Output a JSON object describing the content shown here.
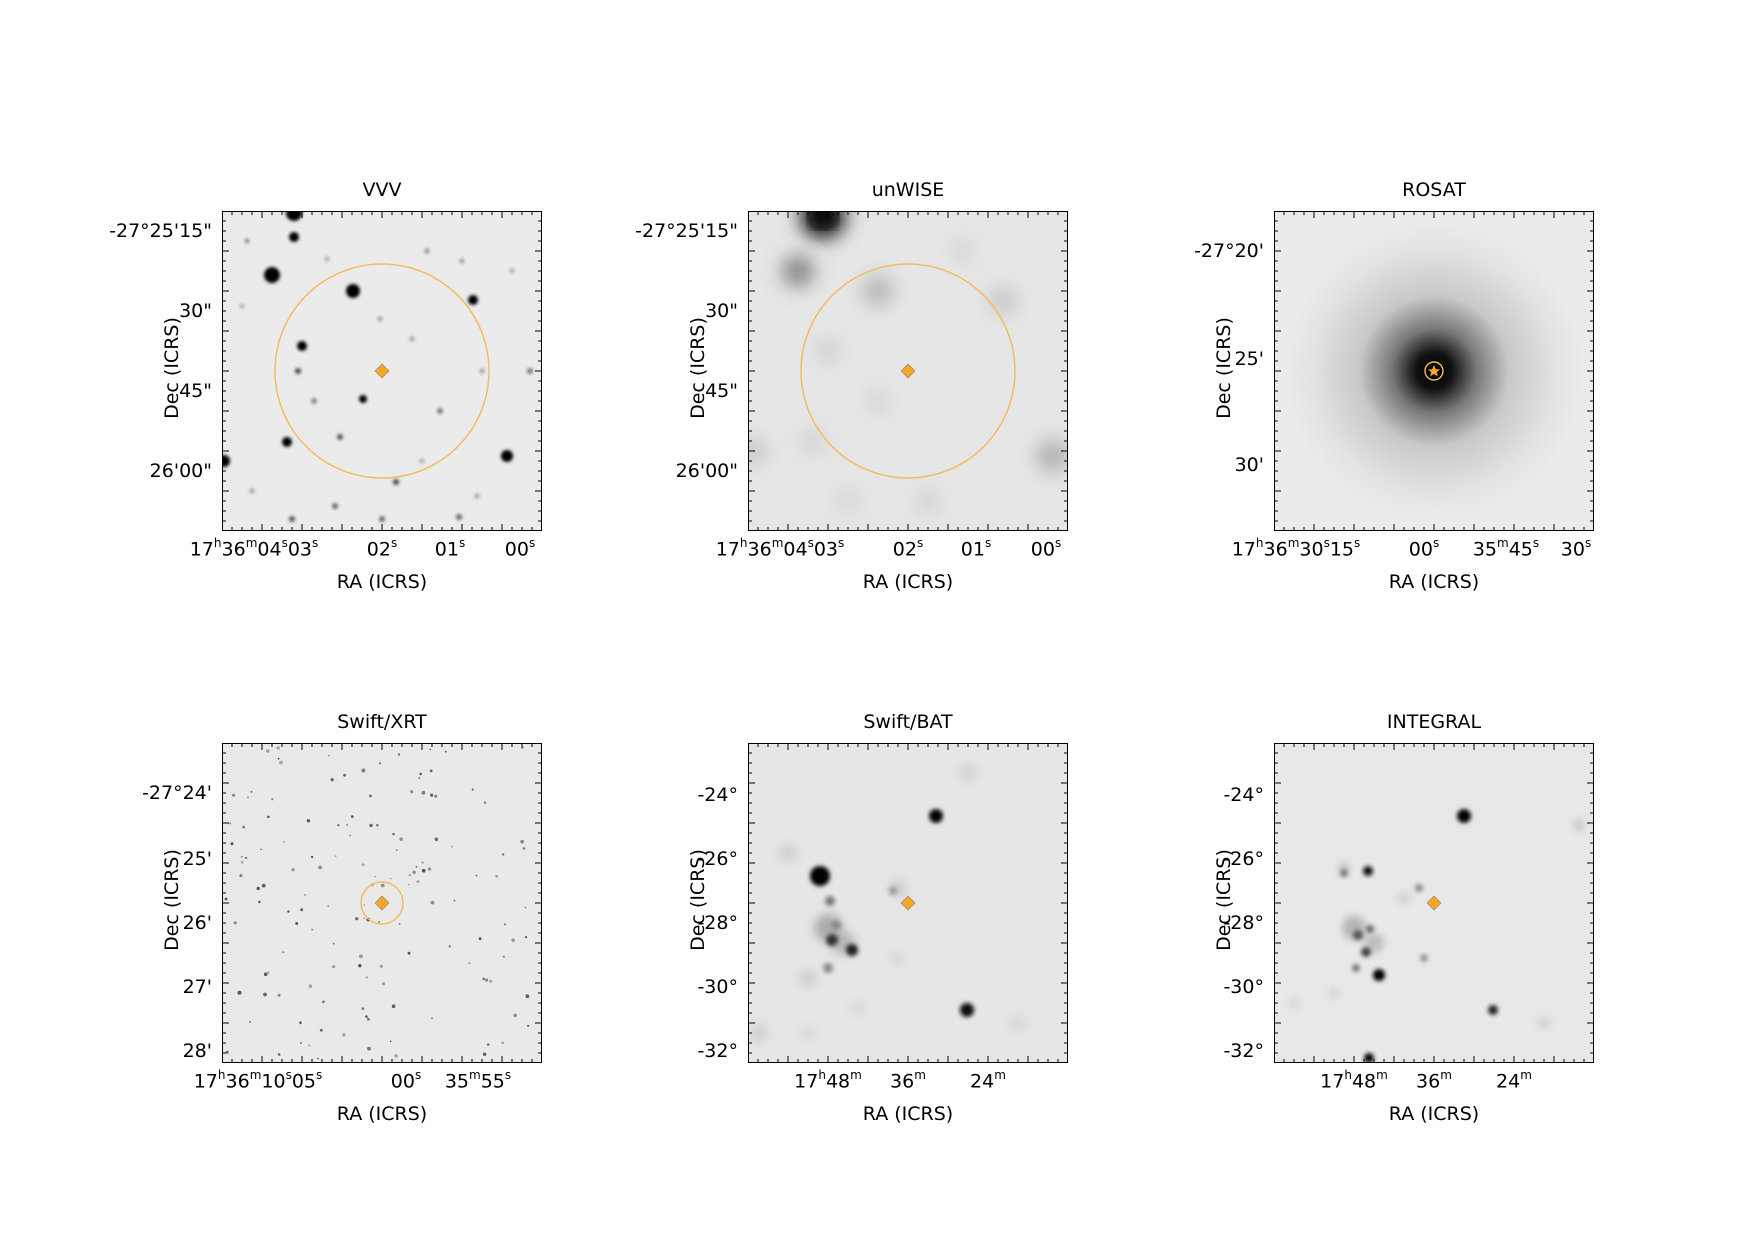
{
  "colors": {
    "marker": "#f5a623",
    "circle": "#f2bd5e",
    "background": "#ebebeb"
  },
  "panels": [
    {
      "id": "vvv",
      "title": "VVV",
      "xlabel": "RA (ICRS)",
      "ylabel": "Dec (ICRS)",
      "yticks": [
        "-27°25'15\"",
        "30\"",
        "45\"",
        "26'00\""
      ],
      "xticks": [
        {
          "segs": [
            [
              "17",
              "h"
            ],
            [
              "36",
              "m"
            ],
            [
              "04",
              "s"
            ],
            [
              "03",
              "s"
            ]
          ]
        },
        {
          "segs": [
            [
              "02",
              "s"
            ]
          ]
        },
        {
          "segs": [
            [
              "01",
              "s"
            ]
          ]
        },
        {
          "segs": [
            [
              "00",
              "s"
            ]
          ]
        }
      ],
      "image": "starfield-small",
      "circle": "large",
      "marker": "diamond-marker"
    },
    {
      "id": "unwise",
      "title": "unWISE",
      "xlabel": "RA (ICRS)",
      "ylabel": "Dec (ICRS)",
      "yticks": [
        "-27°25'15\"",
        "30\"",
        "45\"",
        "26'00\""
      ],
      "xticks": [
        {
          "segs": [
            [
              "17",
              "h"
            ],
            [
              "36",
              "m"
            ],
            [
              "04",
              "s"
            ],
            [
              "03",
              "s"
            ]
          ]
        },
        {
          "segs": [
            [
              "02",
              "s"
            ]
          ]
        },
        {
          "segs": [
            [
              "01",
              "s"
            ]
          ]
        },
        {
          "segs": [
            [
              "00",
              "s"
            ]
          ]
        }
      ],
      "image": "starfield-blurred",
      "circle": "large",
      "marker": "diamond-marker"
    },
    {
      "id": "rosat",
      "title": "ROSAT",
      "xlabel": "RA (ICRS)",
      "ylabel": "Dec (ICRS)",
      "yticks": [
        "-27°20'",
        "25'",
        "30'"
      ],
      "xticks": [
        {
          "segs": [
            [
              "17",
              "h"
            ],
            [
              "36",
              "m"
            ],
            [
              "30",
              "s"
            ],
            [
              "15",
              "s"
            ]
          ]
        },
        {
          "segs": [
            [
              "00",
              "s"
            ]
          ]
        },
        {
          "segs": [
            [
              "35",
              "m"
            ],
            [
              "45",
              "s"
            ]
          ]
        },
        {
          "segs": [
            [
              "30",
              "s"
            ]
          ]
        }
      ],
      "image": "central-source",
      "circle": "small",
      "marker": "star-marker"
    },
    {
      "id": "swift-xrt",
      "title": "Swift/XRT",
      "xlabel": "RA (ICRS)",
      "ylabel": "Dec (ICRS)",
      "yticks": [
        "-27°24'",
        "25'",
        "26'",
        "27'",
        "28'"
      ],
      "xticks": [
        {
          "segs": [
            [
              "17",
              "h"
            ],
            [
              "36",
              "m"
            ],
            [
              "10",
              "s"
            ],
            [
              "05",
              "s"
            ]
          ]
        },
        {
          "segs": [
            [
              "00",
              "s"
            ]
          ]
        },
        {
          "segs": [
            [
              "35",
              "m"
            ],
            [
              "55",
              "s"
            ]
          ]
        }
      ],
      "image": "sparse-points",
      "circle": "medium",
      "marker": "diamond-marker"
    },
    {
      "id": "swift-bat",
      "title": "Swift/BAT",
      "xlabel": "RA (ICRS)",
      "ylabel": "Dec (ICRS)",
      "yticks": [
        "-24°",
        "-26°",
        "-28°",
        "-30°",
        "-32°"
      ],
      "xticks": [
        {
          "segs": [
            [
              "17",
              "h"
            ],
            [
              "48",
              "m"
            ]
          ]
        },
        {
          "segs": [
            [
              "36",
              "m"
            ]
          ]
        },
        {
          "segs": [
            [
              "24",
              "m"
            ]
          ]
        }
      ],
      "image": "hard-xray-field",
      "circle": "none",
      "marker": "diamond-marker"
    },
    {
      "id": "integral",
      "title": "INTEGRAL",
      "xlabel": "RA (ICRS)",
      "ylabel": "Dec (ICRS)",
      "yticks": [
        "-24°",
        "-26°",
        "-28°",
        "-30°",
        "-32°"
      ],
      "xticks": [
        {
          "segs": [
            [
              "17",
              "h"
            ],
            [
              "48",
              "m"
            ]
          ]
        },
        {
          "segs": [
            [
              "36",
              "m"
            ]
          ]
        },
        {
          "segs": [
            [
              "24",
              "m"
            ]
          ]
        }
      ],
      "image": "hard-xray-field",
      "circle": "none",
      "marker": "diamond-marker"
    }
  ]
}
